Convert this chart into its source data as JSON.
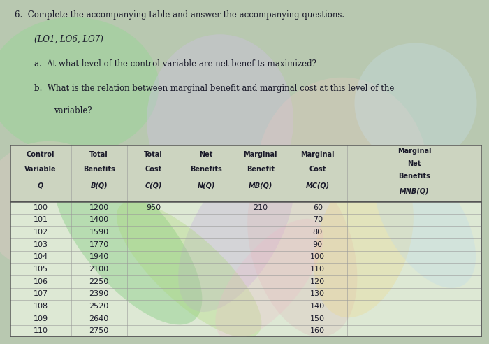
{
  "title_line1": "6.  Complete the accompanying table and answer the accompanying questions.",
  "title_line2": "(LO1, LO6, LO7)",
  "question_a": "a.  At what level of the control variable are net benefits maximized?",
  "question_b1": "b.  What is the relation between marginal benefit and marginal cost at this level of the",
  "question_b2": "         variable?",
  "col_headers": [
    [
      "Control",
      "Variable",
      "Q"
    ],
    [
      "Total",
      "Benefits",
      "B(Q)"
    ],
    [
      "Total",
      "Cost",
      "C(Q)"
    ],
    [
      "Net",
      "Benefits",
      "N(Q)"
    ],
    [
      "Marginal",
      "Benefit",
      "MB(Q)"
    ],
    [
      "Marginal",
      "Cost",
      "MC(Q)"
    ],
    [
      "Marginal",
      "Net",
      "Benefits",
      "MNB(Q)"
    ]
  ],
  "Q": [
    100,
    101,
    102,
    103,
    104,
    105,
    106,
    107,
    108,
    109,
    110
  ],
  "B_Q": [
    "1200",
    "1400",
    "1590",
    "1770",
    "1940",
    "2100",
    "2250",
    "2390",
    "2520",
    "2640",
    "2750"
  ],
  "C_Q": [
    "950",
    "",
    "",
    "",
    "",
    "",
    "",
    "",
    "",
    "",
    ""
  ],
  "N_Q": [
    "",
    "",
    "",
    "",
    "",
    "",
    "",
    "",
    "",
    "",
    ""
  ],
  "MB_Q": [
    "210",
    "",
    "",
    "",
    "",
    "",
    "",
    "",
    "",
    "",
    ""
  ],
  "MC_Q": [
    "60",
    "70",
    "80",
    "90",
    "100",
    "110",
    "120",
    "130",
    "140",
    "150",
    "160"
  ],
  "MNB_Q": [
    "",
    "",
    "",
    "",
    "",
    "",
    "",
    "",
    "",
    "",
    ""
  ],
  "fig_bg": "#b8c8b0",
  "table_bg_base": "#dde8d8",
  "header_bg": "#ccd4c4",
  "text_color": "#1a1a2a",
  "wave_colors": [
    "#90c890",
    "#c8b8e0",
    "#e8c8c0",
    "#b8d890",
    "#f0e0a8"
  ],
  "wave_alphas": [
    0.45,
    0.35,
    0.3,
    0.4,
    0.3
  ]
}
